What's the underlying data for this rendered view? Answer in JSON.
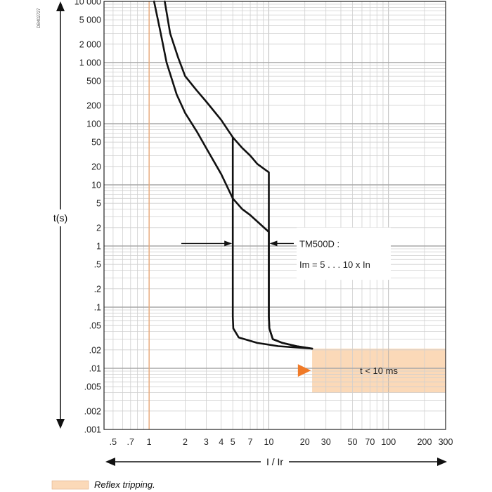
{
  "figure_code": "DB402727",
  "chart_data": {
    "type": "line",
    "title": "",
    "xlabel": "I / Ir",
    "ylabel": "t(s)",
    "xscale": "log",
    "yscale": "log",
    "xlim": [
      0.42,
      300
    ],
    "ylim": [
      0.001,
      10000
    ],
    "grid": true,
    "x_tick_labels": [
      {
        "v": 0.5,
        "label": ".5"
      },
      {
        "v": 0.7,
        "label": ".7"
      },
      {
        "v": 1,
        "label": "1"
      },
      {
        "v": 2,
        "label": "2"
      },
      {
        "v": 3,
        "label": "3"
      },
      {
        "v": 4,
        "label": "4"
      },
      {
        "v": 5,
        "label": "5"
      },
      {
        "v": 7,
        "label": "7"
      },
      {
        "v": 10,
        "label": "10"
      },
      {
        "v": 20,
        "label": "20"
      },
      {
        "v": 30,
        "label": "30"
      },
      {
        "v": 50,
        "label": "50"
      },
      {
        "v": 70,
        "label": "70"
      },
      {
        "v": 100,
        "label": "100"
      },
      {
        "v": 200,
        "label": "200"
      },
      {
        "v": 300,
        "label": "300"
      }
    ],
    "y_tick_labels": [
      {
        "v": 10000,
        "label": "10 000"
      },
      {
        "v": 5000,
        "label": "5 000"
      },
      {
        "v": 2000,
        "label": "2 000"
      },
      {
        "v": 1000,
        "label": "1 000"
      },
      {
        "v": 500,
        "label": "500"
      },
      {
        "v": 200,
        "label": "200"
      },
      {
        "v": 100,
        "label": "100"
      },
      {
        "v": 50,
        "label": "50"
      },
      {
        "v": 20,
        "label": "20"
      },
      {
        "v": 10,
        "label": "10"
      },
      {
        "v": 5,
        "label": "5"
      },
      {
        "v": 2,
        "label": "2"
      },
      {
        "v": 1,
        "label": "1"
      },
      {
        "v": 0.5,
        "label": ".5"
      },
      {
        "v": 0.2,
        "label": ".2"
      },
      {
        "v": 0.1,
        "label": ".1"
      },
      {
        "v": 0.05,
        "label": ".05"
      },
      {
        "v": 0.02,
        "label": ".02"
      },
      {
        "v": 0.01,
        "label": ".01"
      },
      {
        "v": 0.005,
        "label": ".005"
      },
      {
        "v": 0.002,
        "label": ".002"
      },
      {
        "v": 0.001,
        "label": ".001"
      }
    ],
    "series": [
      {
        "values": [
          [
            1.35,
            10000
          ],
          [
            1.5,
            3000
          ],
          [
            1.75,
            1200
          ],
          [
            2.0,
            600
          ],
          [
            2.5,
            350
          ],
          [
            3.0,
            230
          ],
          [
            4.0,
            115
          ],
          [
            5.0,
            60
          ],
          [
            6.0,
            40
          ],
          [
            7.0,
            30
          ],
          [
            8.0,
            22
          ],
          [
            10.0,
            16
          ],
          [
            10.0,
            0.07
          ],
          [
            10.1,
            0.045
          ],
          [
            10.8,
            0.03
          ],
          [
            13.0,
            0.026
          ],
          [
            17.0,
            0.023
          ],
          [
            23.0,
            0.021
          ]
        ]
      },
      {
        "values": [
          [
            1.1,
            10000
          ],
          [
            1.25,
            3000
          ],
          [
            1.4,
            1000
          ],
          [
            1.7,
            300
          ],
          [
            2.0,
            150
          ],
          [
            2.5,
            75
          ],
          [
            3.0,
            40
          ],
          [
            4.0,
            15
          ],
          [
            5.0,
            6.0
          ],
          [
            6.0,
            4.0
          ],
          [
            7.0,
            3.2
          ],
          [
            10.0,
            1.7
          ],
          [
            10.0,
            0.07
          ],
          [
            10.1,
            0.045
          ],
          [
            10.8,
            0.03
          ],
          [
            13.0,
            0.026
          ],
          [
            17.0,
            0.023
          ],
          [
            23.0,
            0.021
          ]
        ]
      },
      {
        "values": [
          [
            5.0,
            60
          ],
          [
            5.0,
            0.07
          ],
          [
            5.05,
            0.045
          ],
          [
            5.6,
            0.032
          ],
          [
            8.0,
            0.026
          ],
          [
            12.0,
            0.023
          ],
          [
            23.0,
            0.021
          ]
        ]
      }
    ],
    "ref_line_x": 1,
    "reflex_zone": {
      "x_from": 23,
      "x_to": 300,
      "t_from": 0.004,
      "t_to": 0.021
    },
    "annotations": {
      "reflex_label": "t < 10 ms",
      "setting_title": "TM500D :",
      "setting_range": "Im = 5 . . . 10 x In"
    },
    "colors": {
      "curve": "#111111",
      "reflex_fill": "#fbd9b8",
      "reflex_arrow": "#f07a28",
      "ref_line": "#e8a878",
      "grid_major": "#a8a8a8",
      "grid_minor": "#cfcfcf"
    },
    "legend": [
      {
        "label": "Reflex tripping.",
        "color": "#fbd9b8"
      }
    ]
  }
}
